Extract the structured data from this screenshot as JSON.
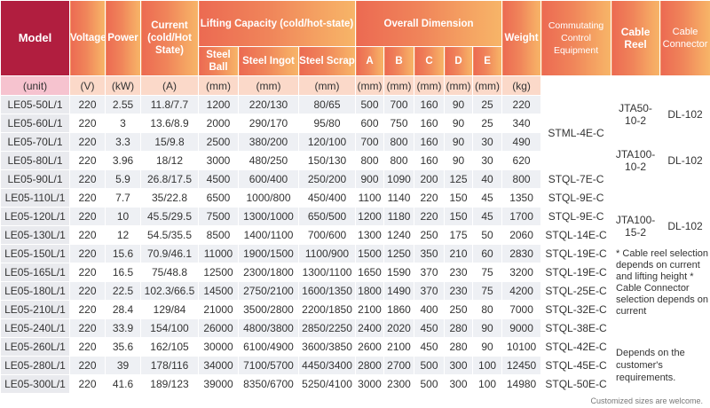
{
  "headers": {
    "model": "Model",
    "voltage": "Voltage",
    "power": "Power",
    "current": "Current (cold/Hot State)",
    "lifting": "Lifting Capacity (cold/hot-state)",
    "steel_ball": "Steel Ball",
    "steel_ingot": "Steel Ingot",
    "steel_scrap": "Steel Scrap",
    "overall": "Overall Dimension",
    "a": "A",
    "b": "B",
    "c": "C",
    "d": "D",
    "e": "E",
    "weight": "Weight",
    "commutating": "Commutating Control Equipment",
    "cable_reel": "Cable Reel",
    "cable_connector": "Cable Connector"
  },
  "units": [
    "(unit)",
    "(V)",
    "(kW)",
    "(A)",
    "(mm)",
    "(mm)",
    "(mm)",
    "(mm)",
    "(mm)",
    "(mm)",
    "(mm)",
    "(mm)",
    "(kg)"
  ],
  "rows": [
    [
      "LE05-50L/1",
      "220",
      "2.55",
      "11.8/7.7",
      "1200",
      "220/130",
      "80/65",
      "500",
      "700",
      "160",
      "90",
      "25",
      "220"
    ],
    [
      "LE05-60L/1",
      "220",
      "3",
      "13.6/8.9",
      "2000",
      "290/170",
      "95/80",
      "600",
      "750",
      "160",
      "90",
      "25",
      "340"
    ],
    [
      "LE05-70L/1",
      "220",
      "3.3",
      "15/9.8",
      "2500",
      "380/200",
      "120/100",
      "700",
      "800",
      "160",
      "90",
      "30",
      "490"
    ],
    [
      "LE05-80L/1",
      "220",
      "3.96",
      "18/12",
      "3000",
      "480/250",
      "150/130",
      "800",
      "800",
      "160",
      "90",
      "30",
      "620"
    ],
    [
      "LE05-90L/1",
      "220",
      "5.9",
      "26.8/17.5",
      "4500",
      "600/400",
      "250/200",
      "900",
      "1090",
      "200",
      "125",
      "40",
      "800"
    ],
    [
      "LE05-110L/1",
      "220",
      "7.7",
      "35/22.8",
      "6500",
      "1000/800",
      "450/400",
      "1100",
      "1140",
      "220",
      "150",
      "45",
      "1350"
    ],
    [
      "LE05-120L/1",
      "220",
      "10",
      "45.5/29.5",
      "7500",
      "1300/1000",
      "650/500",
      "1200",
      "1180",
      "220",
      "150",
      "45",
      "1700"
    ],
    [
      "LE05-130L/1",
      "220",
      "12",
      "54.5/35.5",
      "8500",
      "1400/1100",
      "700/600",
      "1300",
      "1240",
      "250",
      "175",
      "50",
      "2060"
    ],
    [
      "LE05-150L/1",
      "220",
      "15.6",
      "70.9/46.1",
      "11000",
      "1900/1500",
      "1100/900",
      "1500",
      "1250",
      "350",
      "210",
      "60",
      "2830"
    ],
    [
      "LE05-165L/1",
      "220",
      "16.5",
      "75/48.8",
      "12500",
      "2300/1800",
      "1300/1100",
      "1650",
      "1590",
      "370",
      "230",
      "75",
      "3200"
    ],
    [
      "LE05-180L/1",
      "220",
      "22.5",
      "102.3/66.5",
      "14500",
      "2750/2100",
      "1600/1350",
      "1800",
      "1490",
      "370",
      "230",
      "75",
      "4200"
    ],
    [
      "LE05-210L/1",
      "220",
      "28.4",
      "129/84",
      "21000",
      "3500/2800",
      "2200/1850",
      "2100",
      "1860",
      "400",
      "250",
      "80",
      "7000"
    ],
    [
      "LE05-240L/1",
      "220",
      "33.9",
      "154/100",
      "26000",
      "4800/3800",
      "2850/2250",
      "2400",
      "2020",
      "450",
      "280",
      "90",
      "9000"
    ],
    [
      "LE05-260L/1",
      "220",
      "35.6",
      "162/105",
      "30000",
      "6100/4900",
      "3600/3850",
      "2600",
      "2100",
      "450",
      "280",
      "90",
      "10100"
    ],
    [
      "LE05-280L/1",
      "220",
      "39",
      "178/116",
      "34000",
      "7100/5700",
      "4450/3400",
      "2800",
      "2700",
      "500",
      "300",
      "100",
      "12450"
    ],
    [
      "LE05-300L/1",
      "220",
      "41.6",
      "189/123",
      "39000",
      "8350/6700",
      "5250/4100",
      "3000",
      "2300",
      "500",
      "300",
      "100",
      "14980"
    ]
  ],
  "commutating": {
    "stml4ec": "STML-4E-C",
    "stql7ec": "STQL-7E-C",
    "stql9ec_a": "STQL-9E-C",
    "stql9ec_b": "STQL-9E-C",
    "stql14ec": "STQL-14E-C",
    "stql19ec_a": "STQL-19E-C",
    "stql19ec_b": "STQL-19E-C",
    "stql25ec": "STQL-25E-C",
    "stql32ec": "STQL-32E-C",
    "stql38ec": "STQL-38E-C",
    "stql42ec": "STQL-42E-C",
    "stql45ec": "STQL-45E-C",
    "stql50ec": "STQL-50E-C"
  },
  "cable": {
    "reel1": "JTA50-10-2",
    "conn1": "DL-102",
    "reel2": "JTA100-10-2",
    "conn2": "DL-102",
    "reel3": "JTA100-15-2",
    "conn3": "DL-102",
    "note1": "* Cable reel selection depends on current and lifting height * Cable Connector selection depends on current",
    "note2": "Depends on the customer's requirements."
  },
  "footnote": "Customized sizes are welcome."
}
